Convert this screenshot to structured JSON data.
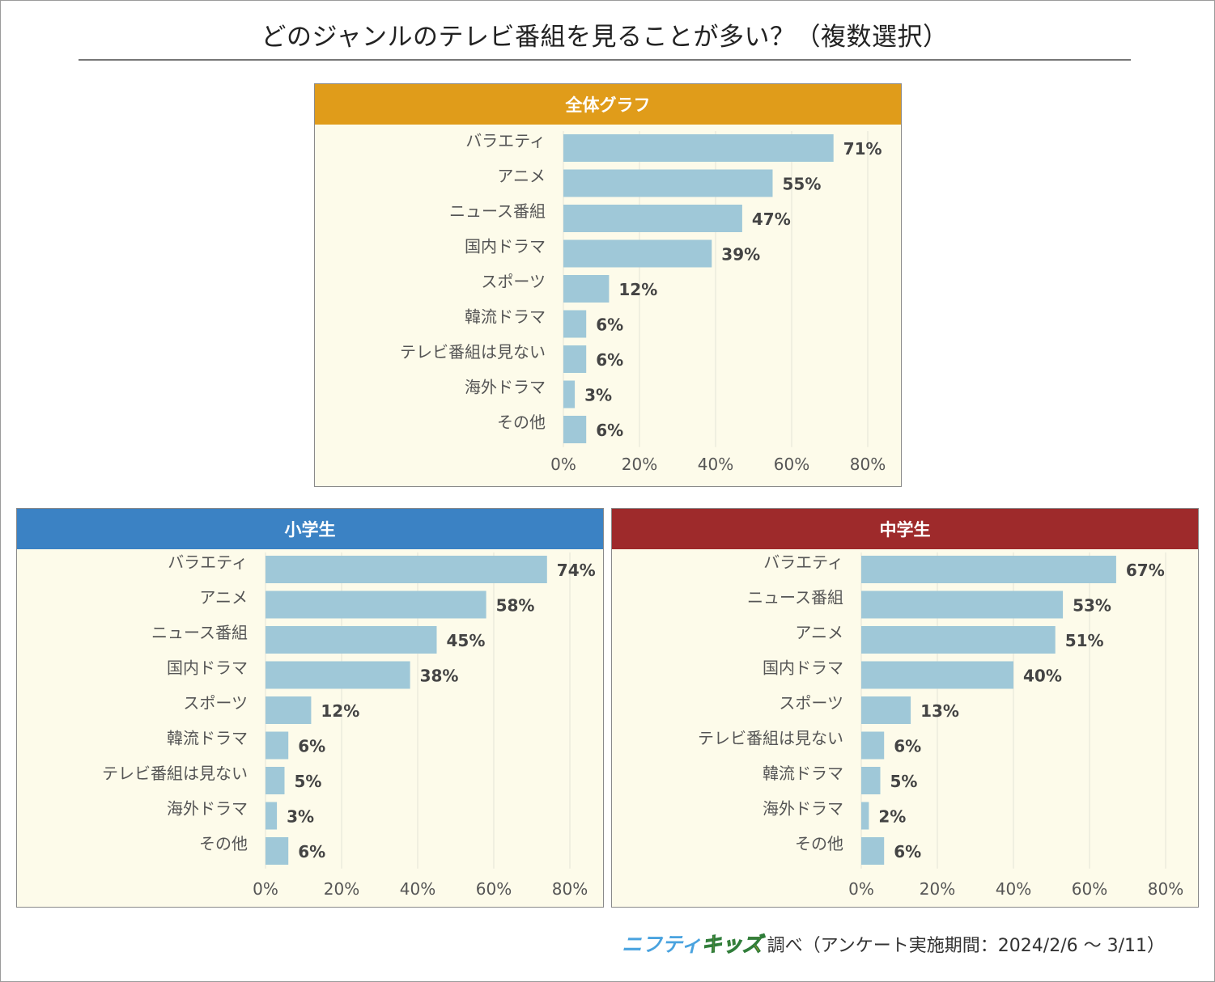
{
  "title": "どのジャンルのテレビ番組を見ることが多い？（複数選択）",
  "source": {
    "logo_part1": "ニフティ",
    "logo_part2": "キッズ",
    "text": "調べ（アンケート実施期間：2024/2/6 ～ 3/11）"
  },
  "colors": {
    "bar": "#9fc8d8",
    "panel_bg": "#fdfbea",
    "header_overall": "#e09c1a",
    "header_elementary": "#3b82c4",
    "header_junior": "#9e2a2b"
  },
  "chart_data": [
    {
      "type": "bar",
      "orientation": "horizontal",
      "title": "全体グラフ",
      "categories": [
        "バラエティ",
        "アニメ",
        "ニュース番組",
        "国内ドラマ",
        "スポーツ",
        "韓流ドラマ",
        "テレビ番組は見ない",
        "海外ドラマ",
        "その他"
      ],
      "values": [
        71,
        55,
        47,
        39,
        12,
        6,
        6,
        3,
        6
      ],
      "value_labels": [
        "71%",
        "55%",
        "47%",
        "39%",
        "12%",
        "6%",
        "6%",
        "3%",
        "6%"
      ],
      "xlim": [
        0,
        80
      ],
      "xticks": [
        "0%",
        "20%",
        "40%",
        "60%",
        "80%"
      ],
      "grid": true
    },
    {
      "type": "bar",
      "orientation": "horizontal",
      "title": "小学生",
      "categories": [
        "バラエティ",
        "アニメ",
        "ニュース番組",
        "国内ドラマ",
        "スポーツ",
        "韓流ドラマ",
        "テレビ番組は見ない",
        "海外ドラマ",
        "その他"
      ],
      "values": [
        74,
        58,
        45,
        38,
        12,
        6,
        5,
        3,
        6
      ],
      "value_labels": [
        "74%",
        "58%",
        "45%",
        "38%",
        "12%",
        "6%",
        "5%",
        "3%",
        "6%"
      ],
      "xlim": [
        0,
        80
      ],
      "xticks": [
        "0%",
        "20%",
        "40%",
        "60%",
        "80%"
      ],
      "grid": true
    },
    {
      "type": "bar",
      "orientation": "horizontal",
      "title": "中学生",
      "categories": [
        "バラエティ",
        "ニュース番組",
        "アニメ",
        "国内ドラマ",
        "スポーツ",
        "テレビ番組は見ない",
        "韓流ドラマ",
        "海外ドラマ",
        "その他"
      ],
      "values": [
        67,
        53,
        51,
        40,
        13,
        6,
        5,
        2,
        6
      ],
      "value_labels": [
        "67%",
        "53%",
        "51%",
        "40%",
        "13%",
        "6%",
        "5%",
        "2%",
        "6%"
      ],
      "xlim": [
        0,
        80
      ],
      "xticks": [
        "0%",
        "20%",
        "40%",
        "60%",
        "80%"
      ],
      "grid": true
    }
  ]
}
